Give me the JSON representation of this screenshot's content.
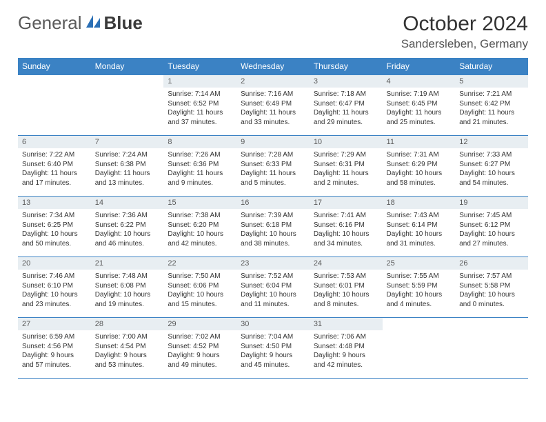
{
  "brand": {
    "part1": "General",
    "part2": "Blue"
  },
  "title": "October 2024",
  "location": "Sandersleben, Germany",
  "colors": {
    "header_bg": "#3b82c4",
    "header_fg": "#ffffff",
    "daynum_bg": "#e8eef2",
    "border": "#3b82c4",
    "logo_blue": "#2a6fb5"
  },
  "weekdays": [
    "Sunday",
    "Monday",
    "Tuesday",
    "Wednesday",
    "Thursday",
    "Friday",
    "Saturday"
  ],
  "layout": {
    "first_weekday_index": 2,
    "days_in_month": 31
  },
  "days": [
    {
      "n": 1,
      "sunrise": "7:14 AM",
      "sunset": "6:52 PM",
      "daylight": "11 hours and 37 minutes."
    },
    {
      "n": 2,
      "sunrise": "7:16 AM",
      "sunset": "6:49 PM",
      "daylight": "11 hours and 33 minutes."
    },
    {
      "n": 3,
      "sunrise": "7:18 AM",
      "sunset": "6:47 PM",
      "daylight": "11 hours and 29 minutes."
    },
    {
      "n": 4,
      "sunrise": "7:19 AM",
      "sunset": "6:45 PM",
      "daylight": "11 hours and 25 minutes."
    },
    {
      "n": 5,
      "sunrise": "7:21 AM",
      "sunset": "6:42 PM",
      "daylight": "11 hours and 21 minutes."
    },
    {
      "n": 6,
      "sunrise": "7:22 AM",
      "sunset": "6:40 PM",
      "daylight": "11 hours and 17 minutes."
    },
    {
      "n": 7,
      "sunrise": "7:24 AM",
      "sunset": "6:38 PM",
      "daylight": "11 hours and 13 minutes."
    },
    {
      "n": 8,
      "sunrise": "7:26 AM",
      "sunset": "6:36 PM",
      "daylight": "11 hours and 9 minutes."
    },
    {
      "n": 9,
      "sunrise": "7:28 AM",
      "sunset": "6:33 PM",
      "daylight": "11 hours and 5 minutes."
    },
    {
      "n": 10,
      "sunrise": "7:29 AM",
      "sunset": "6:31 PM",
      "daylight": "11 hours and 2 minutes."
    },
    {
      "n": 11,
      "sunrise": "7:31 AM",
      "sunset": "6:29 PM",
      "daylight": "10 hours and 58 minutes."
    },
    {
      "n": 12,
      "sunrise": "7:33 AM",
      "sunset": "6:27 PM",
      "daylight": "10 hours and 54 minutes."
    },
    {
      "n": 13,
      "sunrise": "7:34 AM",
      "sunset": "6:25 PM",
      "daylight": "10 hours and 50 minutes."
    },
    {
      "n": 14,
      "sunrise": "7:36 AM",
      "sunset": "6:22 PM",
      "daylight": "10 hours and 46 minutes."
    },
    {
      "n": 15,
      "sunrise": "7:38 AM",
      "sunset": "6:20 PM",
      "daylight": "10 hours and 42 minutes."
    },
    {
      "n": 16,
      "sunrise": "7:39 AM",
      "sunset": "6:18 PM",
      "daylight": "10 hours and 38 minutes."
    },
    {
      "n": 17,
      "sunrise": "7:41 AM",
      "sunset": "6:16 PM",
      "daylight": "10 hours and 34 minutes."
    },
    {
      "n": 18,
      "sunrise": "7:43 AM",
      "sunset": "6:14 PM",
      "daylight": "10 hours and 31 minutes."
    },
    {
      "n": 19,
      "sunrise": "7:45 AM",
      "sunset": "6:12 PM",
      "daylight": "10 hours and 27 minutes."
    },
    {
      "n": 20,
      "sunrise": "7:46 AM",
      "sunset": "6:10 PM",
      "daylight": "10 hours and 23 minutes."
    },
    {
      "n": 21,
      "sunrise": "7:48 AM",
      "sunset": "6:08 PM",
      "daylight": "10 hours and 19 minutes."
    },
    {
      "n": 22,
      "sunrise": "7:50 AM",
      "sunset": "6:06 PM",
      "daylight": "10 hours and 15 minutes."
    },
    {
      "n": 23,
      "sunrise": "7:52 AM",
      "sunset": "6:04 PM",
      "daylight": "10 hours and 11 minutes."
    },
    {
      "n": 24,
      "sunrise": "7:53 AM",
      "sunset": "6:01 PM",
      "daylight": "10 hours and 8 minutes."
    },
    {
      "n": 25,
      "sunrise": "7:55 AM",
      "sunset": "5:59 PM",
      "daylight": "10 hours and 4 minutes."
    },
    {
      "n": 26,
      "sunrise": "7:57 AM",
      "sunset": "5:58 PM",
      "daylight": "10 hours and 0 minutes."
    },
    {
      "n": 27,
      "sunrise": "6:59 AM",
      "sunset": "4:56 PM",
      "daylight": "9 hours and 57 minutes."
    },
    {
      "n": 28,
      "sunrise": "7:00 AM",
      "sunset": "4:54 PM",
      "daylight": "9 hours and 53 minutes."
    },
    {
      "n": 29,
      "sunrise": "7:02 AM",
      "sunset": "4:52 PM",
      "daylight": "9 hours and 49 minutes."
    },
    {
      "n": 30,
      "sunrise": "7:04 AM",
      "sunset": "4:50 PM",
      "daylight": "9 hours and 45 minutes."
    },
    {
      "n": 31,
      "sunrise": "7:06 AM",
      "sunset": "4:48 PM",
      "daylight": "9 hours and 42 minutes."
    }
  ],
  "labels": {
    "sunrise": "Sunrise:",
    "sunset": "Sunset:",
    "daylight": "Daylight:"
  }
}
